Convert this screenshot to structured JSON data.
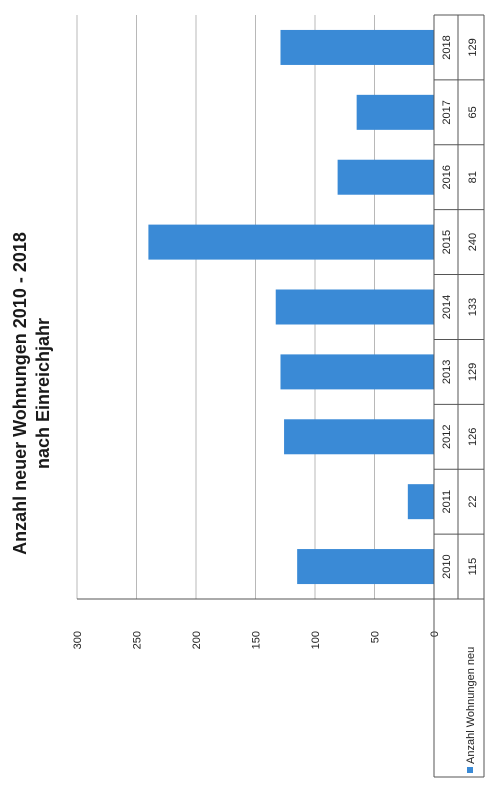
{
  "chart_data": {
    "type": "bar",
    "title": "Anzahl neuer Wohnungen 2010 - 2018",
    "subtitle": "nach Einreichjahr",
    "categories": [
      "2010",
      "2011",
      "2012",
      "2013",
      "2014",
      "2015",
      "2016",
      "2017",
      "2018"
    ],
    "series": [
      {
        "name": "Anzahl Wohnungen neu",
        "values": [
          115,
          22,
          126,
          129,
          133,
          240,
          81,
          65,
          129
        ],
        "color": "#3a8ad6"
      }
    ],
    "value_labels": [
      "115",
      "22",
      "126",
      "129",
      "133",
      "240",
      "81",
      "65",
      "129"
    ],
    "ylim": [
      0,
      300
    ],
    "yticks": [
      0,
      50,
      100,
      150,
      200,
      250,
      300
    ],
    "ytick_labels": [
      "0",
      "50",
      "100",
      "150",
      "200",
      "250",
      "300"
    ],
    "grid": true,
    "legend": "data-table",
    "orientation": "rotated-90-ccw"
  }
}
